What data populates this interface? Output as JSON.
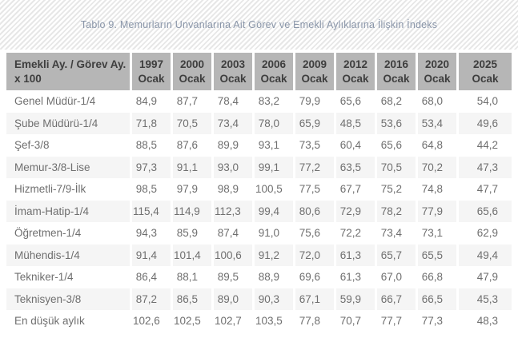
{
  "title": "Tablo 9. Memurların Unvanlarına Ait Görev ve Emekli Aylıklarına İlişkin İndeks",
  "table": {
    "corner": {
      "line1": "Emekli Ay. / Görev Ay.",
      "line2": "x 100"
    },
    "columns": [
      {
        "year": "1997",
        "month": "Ocak"
      },
      {
        "year": "2000",
        "month": "Ocak"
      },
      {
        "year": "2003",
        "month": "Ocak"
      },
      {
        "year": "2006",
        "month": "Ocak"
      },
      {
        "year": "2009",
        "month": "Ocak"
      },
      {
        "year": "2012",
        "month": "Ocak"
      },
      {
        "year": "2016",
        "month": "Ocak"
      },
      {
        "year": "2020",
        "month": "Ocak"
      },
      {
        "year": "2025",
        "month": "Ocak"
      }
    ],
    "decimal_separator": ","
  },
  "colors": {
    "header_bg": "#b6b6b6",
    "header_text": "#3e3e3e",
    "row_alt_bg": "#f5f5f5",
    "body_text": "#6f6f6f",
    "title_text": "#8a96a9",
    "stripe": "#e7e7e7"
  },
  "chart_data": {
    "type": "table",
    "title": "Tablo 9. Memurların Unvanlarına Ait Görev ve Emekli Aylıklarına İlişkin İndeks",
    "corner_label": "Emekli Ay. / Görev Ay. x 100",
    "columns": [
      "1997 Ocak",
      "2000 Ocak",
      "2003 Ocak",
      "2006 Ocak",
      "2009 Ocak",
      "2012 Ocak",
      "2016 Ocak",
      "2020 Ocak",
      "2025 Ocak"
    ],
    "rows": [
      {
        "label": "Genel Müdür-1/4",
        "values": [
          84.9,
          87.7,
          78.4,
          83.2,
          79.9,
          65.6,
          68.2,
          68.0,
          54.0
        ]
      },
      {
        "label": "Şube Müdürü-1/4",
        "values": [
          71.8,
          70.5,
          73.4,
          78.0,
          65.9,
          48.5,
          53.6,
          53.4,
          49.6
        ]
      },
      {
        "label": "Şef-3/8",
        "values": [
          88.5,
          87.6,
          89.9,
          93.1,
          73.5,
          60.4,
          65.6,
          64.8,
          44.2
        ]
      },
      {
        "label": "Memur-3/8-Lise",
        "values": [
          97.3,
          91.1,
          93.0,
          99.1,
          77.2,
          63.5,
          70.5,
          70.2,
          47.3
        ]
      },
      {
        "label": "Hizmetli-7/9-İlk",
        "values": [
          98.5,
          97.9,
          98.9,
          100.5,
          77.5,
          67.7,
          75.2,
          74.8,
          47.7
        ]
      },
      {
        "label": "İmam-Hatip-1/4",
        "values": [
          115.4,
          114.9,
          112.3,
          99.4,
          80.6,
          72.9,
          78.2,
          77.9,
          65.6
        ]
      },
      {
        "label": "Öğretmen-1/4",
        "values": [
          94.3,
          85.9,
          87.4,
          91.0,
          75.6,
          72.2,
          73.4,
          73.1,
          62.9
        ]
      },
      {
        "label": "Mühendis-1/4",
        "values": [
          91.4,
          101.4,
          100.6,
          91.2,
          72.0,
          61.3,
          65.7,
          65.5,
          49.4
        ]
      },
      {
        "label": "Tekniker-1/4",
        "values": [
          86.4,
          88.1,
          89.5,
          88.9,
          69.6,
          61.3,
          67.0,
          66.8,
          47.9
        ]
      },
      {
        "label": "Teknisyen-3/8",
        "values": [
          87.2,
          86.5,
          89.0,
          90.3,
          67.1,
          59.9,
          66.7,
          66.5,
          45.3
        ]
      },
      {
        "label": "En düşük aylık",
        "values": [
          102.6,
          102.5,
          102.7,
          103.5,
          77.8,
          70.7,
          77.7,
          77.3,
          48.3
        ]
      }
    ]
  }
}
